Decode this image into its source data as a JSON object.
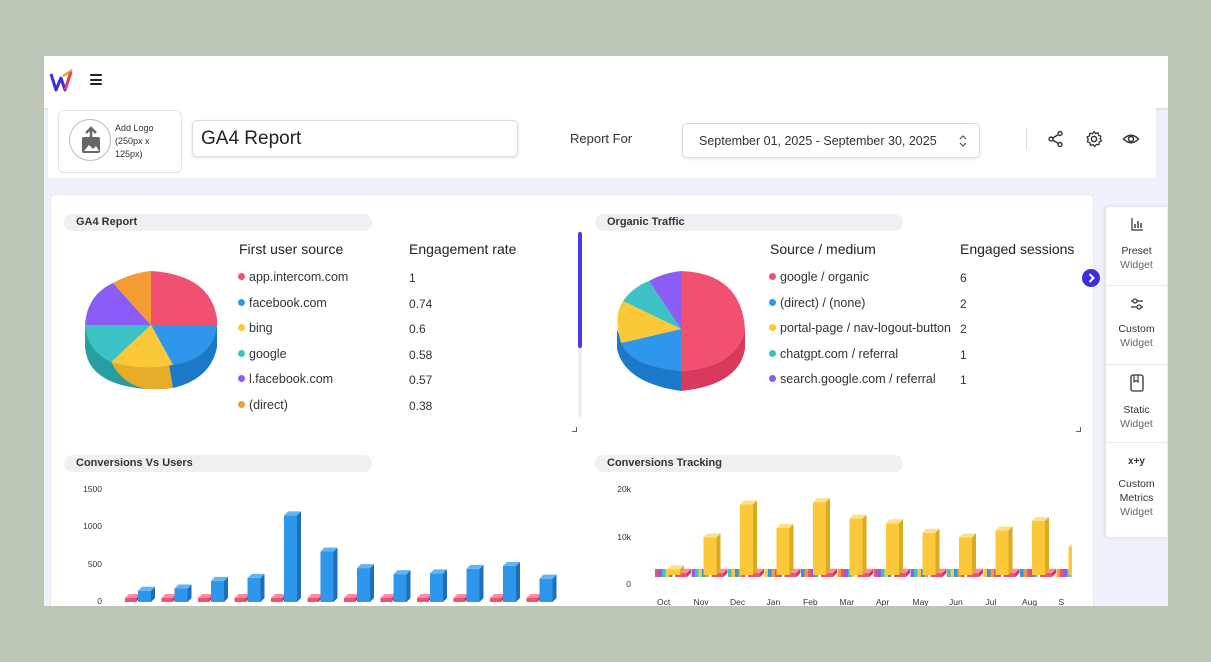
{
  "header": {
    "add_logo_label": "Add Logo (250px x 125px)",
    "report_title": "GA4 Report",
    "report_for_label": "Report For",
    "date_range": "September 01, 2025 - September 30, 2025"
  },
  "icons": [
    "app-logo-icon",
    "hamburger-menu-icon",
    "upload-image-icon",
    "share-icon",
    "settings-gear-icon",
    "eye-icon",
    "chevron-updown-icon",
    "chevron-right-icon",
    "bar-chart-icon",
    "sliders-icon",
    "document-icon",
    "xy-icon"
  ],
  "colors": {
    "pink": "#f25070",
    "blue": "#2f97eb",
    "yellow": "#fbc83a",
    "teal": "#3cc2c4",
    "purple": "#8b5cf6",
    "orange": "#f39c34",
    "accent": "#3a2ee0"
  },
  "widgets": [
    {
      "title": "GA4 Report",
      "col1": "First user source",
      "col2": "Engagement rate",
      "rows": [
        {
          "label": "app.intercom.com",
          "value": "1",
          "color": "#f25070"
        },
        {
          "label": "facebook.com",
          "value": "0.74",
          "color": "#2f97eb"
        },
        {
          "label": "bing",
          "value": "0.6",
          "color": "#fbc83a"
        },
        {
          "label": "google",
          "value": "0.58",
          "color": "#3cc2c4"
        },
        {
          "label": "l.facebook.com",
          "value": "0.57",
          "color": "#8b5cf6"
        },
        {
          "label": "(direct)",
          "value": "0.38",
          "color": "#f39c34"
        }
      ]
    },
    {
      "title": "Organic Traffic",
      "col1": "Source / medium",
      "col2": "Engaged sessions",
      "rows": [
        {
          "label": "google / organic",
          "value": "6",
          "color": "#f25070"
        },
        {
          "label": "(direct) / (none)",
          "value": "2",
          "color": "#2f97eb"
        },
        {
          "label": "portal-page / nav-logout-button",
          "value": "2",
          "color": "#fbc83a"
        },
        {
          "label": "chatgpt.com / referral",
          "value": "1",
          "color": "#3cc2c4"
        },
        {
          "label": "search.google.com / referral",
          "value": "1",
          "color": "#8b5cf6"
        }
      ]
    },
    {
      "title": "Conversions Vs Users",
      "yticks": [
        "1500",
        "1000",
        "500",
        "0"
      ]
    },
    {
      "title": "Conversions Tracking",
      "yticks": [
        "20k",
        "10k",
        "0"
      ],
      "xticks": [
        "Oct",
        "Nov",
        "Dec",
        "Jan",
        "Feb",
        "Mar",
        "Apr",
        "May",
        "Jun",
        "Jul",
        "Aug",
        "S"
      ]
    }
  ],
  "sidebar": [
    {
      "label": "Preset",
      "sub": "Widget"
    },
    {
      "label": "Custom",
      "sub": "Widget"
    },
    {
      "label": "Static",
      "sub": "Widget"
    },
    {
      "label": "Custom Metrics",
      "sub": "Widget"
    }
  ],
  "xy_glyph": "x+y",
  "chart_data": [
    {
      "type": "bar",
      "title": "Conversions Vs Users",
      "ylim": [
        0,
        1500
      ],
      "series": [
        {
          "values": [
            50,
            50,
            50,
            50,
            50,
            50,
            50,
            50,
            50,
            50,
            50,
            50
          ]
        },
        {
          "values": [
            150,
            180,
            280,
            320,
            1150,
            670,
            450,
            370,
            380,
            440,
            480,
            310
          ]
        }
      ]
    },
    {
      "type": "bar",
      "title": "Conversions Tracking",
      "categories": [
        "Oct",
        "Nov",
        "Dec",
        "Jan",
        "Feb",
        "Mar",
        "Apr",
        "May",
        "Jun",
        "Jul",
        "Aug",
        "S"
      ],
      "ylim": [
        0,
        20000
      ],
      "series": [
        {
          "values": [
            1200,
            8000,
            15000,
            10000,
            15500,
            12000,
            11000,
            9000,
            8000,
            9500,
            11500,
            6000
          ]
        },
        {
          "values": [
            2000,
            2000,
            2000,
            2000,
            2000,
            2000,
            2000,
            2000,
            2000,
            2000,
            2000,
            2000
          ]
        }
      ]
    }
  ]
}
